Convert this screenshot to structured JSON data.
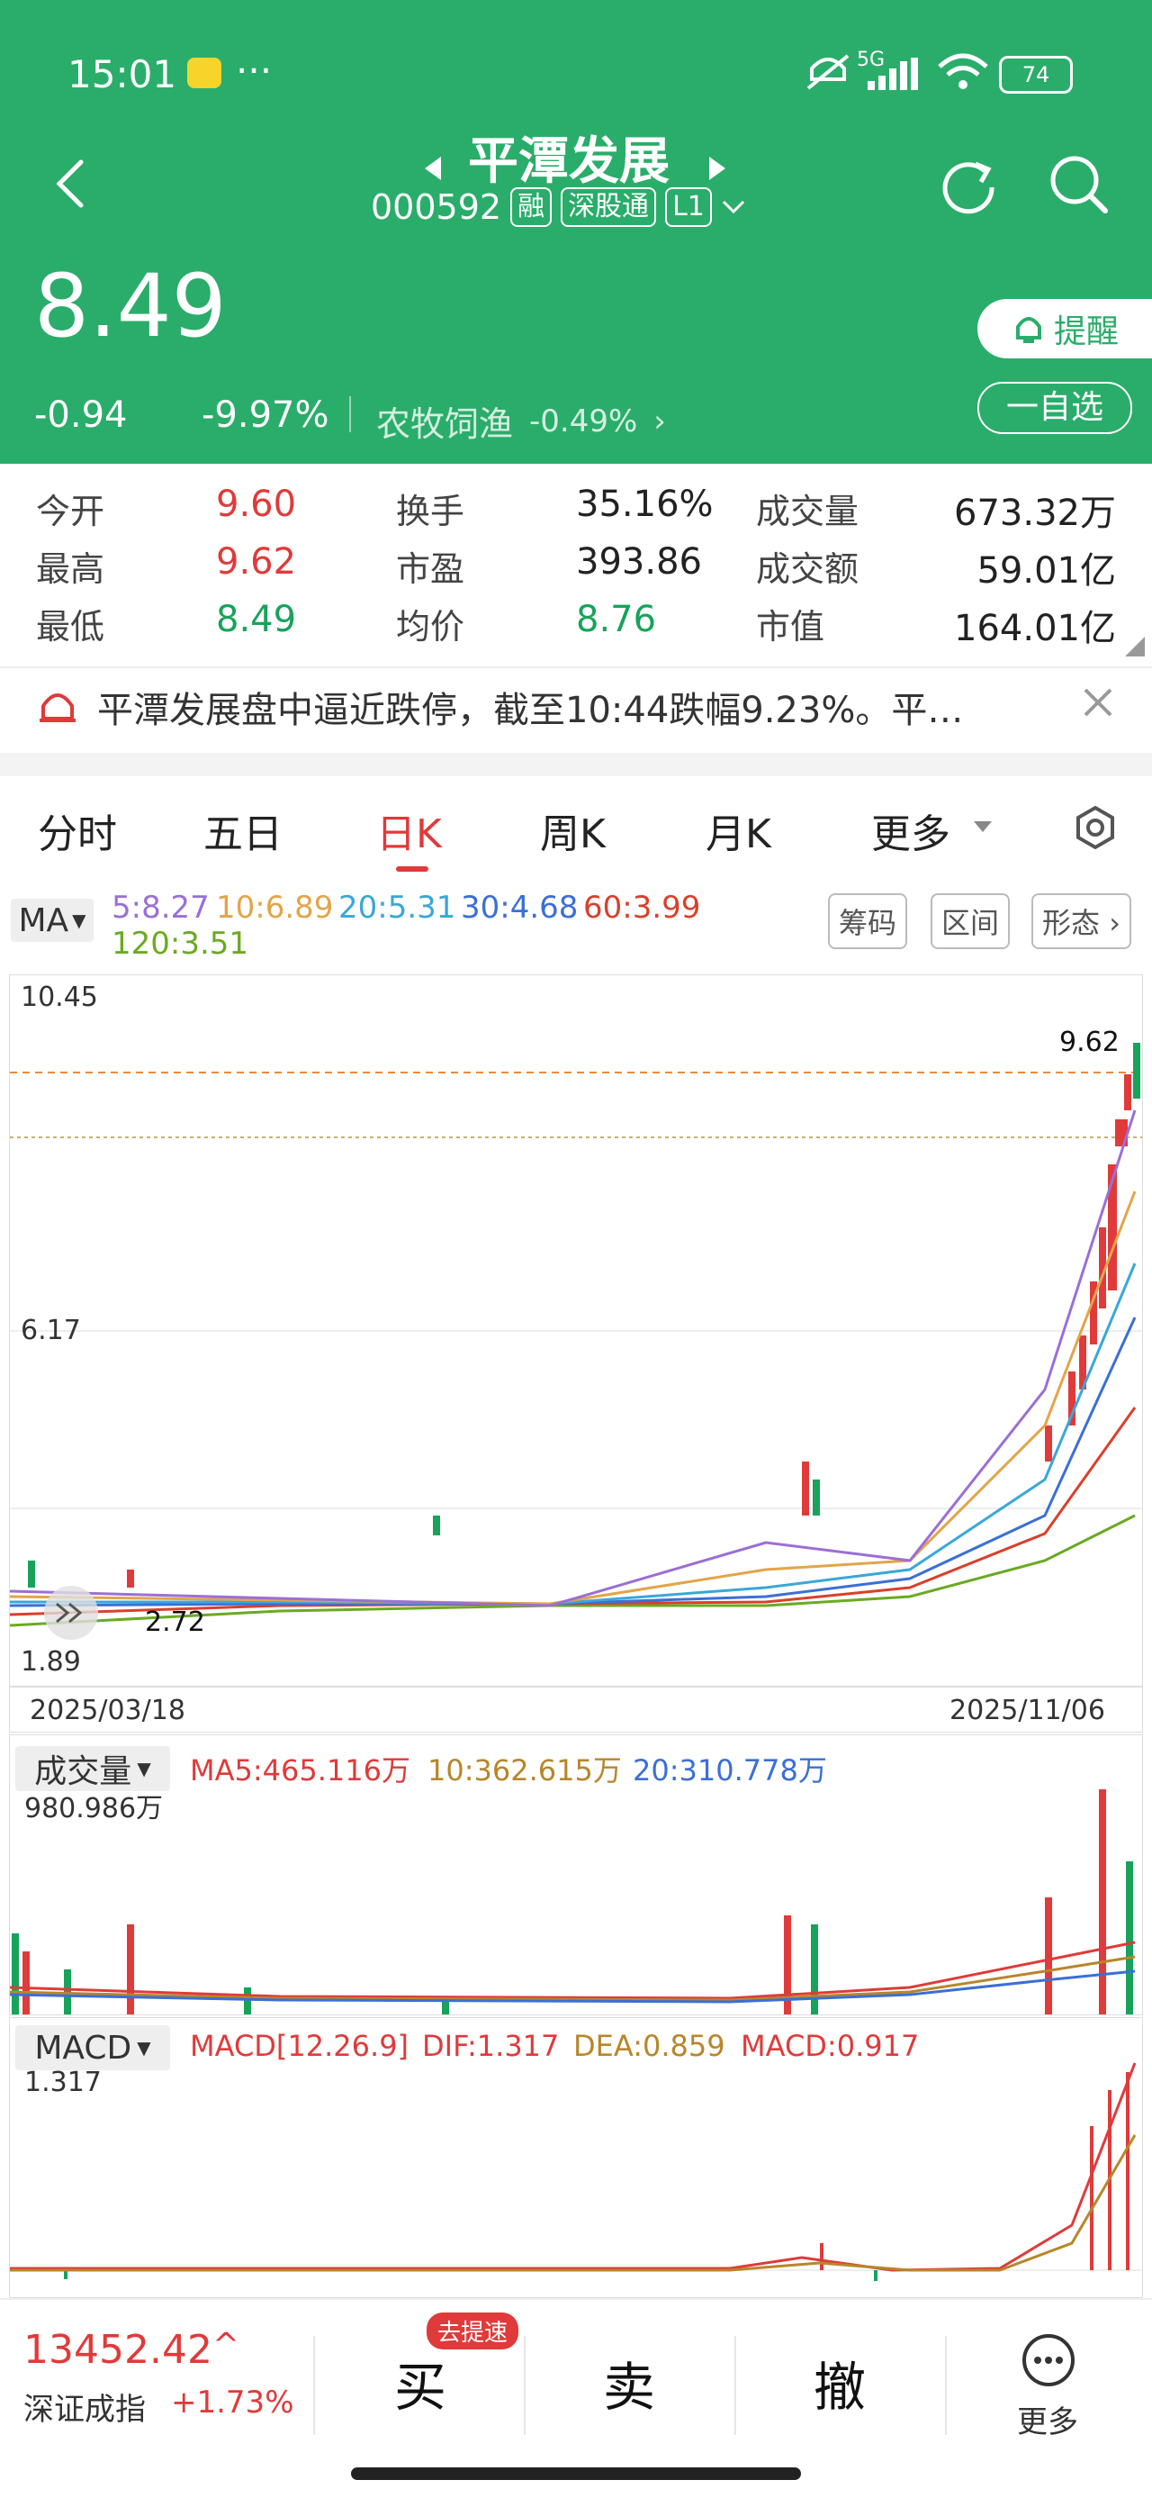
{
  "status_bar": {
    "time": "15:01",
    "dots": "···",
    "network": "5G",
    "battery": "74"
  },
  "header": {
    "title": "平潭发展",
    "code": "000592",
    "badges": [
      "融",
      "深股通",
      "L1"
    ]
  },
  "quote": {
    "price": "8.49",
    "change": "-0.94",
    "change_pct": "-9.97%",
    "sector": "农牧饲渔",
    "sector_change": "-0.49%",
    "remind_label": "提醒",
    "watchlist_label": "一自选"
  },
  "stats": {
    "labels": [
      "今开",
      "最高",
      "最低",
      "换手",
      "市盈",
      "均价",
      "成交量",
      "成交额",
      "市值"
    ],
    "values": [
      "9.60",
      "9.62",
      "8.49",
      "35.16%",
      "393.86",
      "8.76",
      "673.32万",
      "59.01亿",
      "164.01亿"
    ]
  },
  "news": {
    "text": "平潭发展盘中逼近跌停，截至10:44跌幅9.23%。平…"
  },
  "tabs": {
    "items": [
      "分时",
      "五日",
      "日K",
      "周K",
      "月K",
      "更多"
    ],
    "active": "日K"
  },
  "ma_bar": {
    "ma_label": "MA",
    "lines": [
      {
        "text": "5:8.27",
        "color": "#9b6fd6"
      },
      {
        "text": "10:6.89",
        "color": "#e3a44a"
      },
      {
        "text": "20:5.31",
        "color": "#3aa7d8"
      },
      {
        "text": "30:4.68",
        "color": "#3b6fd6"
      },
      {
        "text": "60:3.99",
        "color": "#d9402b"
      },
      {
        "text": "120:3.51",
        "color": "#6aaa22"
      }
    ],
    "tools": [
      "筹码",
      "区间",
      "形态"
    ]
  },
  "kline": {
    "y_top": "10.45",
    "y_mid": "6.17",
    "y_low": "1.89",
    "high_label": "9.62",
    "low_label": "2.72",
    "date_start": "2025/03/18",
    "date_end": "2025/11/06"
  },
  "volume": {
    "label": "成交量",
    "ma5": "MA5:465.116万",
    "ma10": "10:362.615万",
    "ma20": "20:310.778万",
    "max": "980.986万"
  },
  "macd": {
    "label": "MACD",
    "params": "MACD[12.26.9]",
    "dif": "DIF:1.317",
    "dea": "DEA:0.859",
    "macd": "MACD:0.917",
    "max": "1.317"
  },
  "bottom": {
    "index_value": "13452.42",
    "index_name": "深证成指",
    "index_change": "+1.73%",
    "buy": "买",
    "buy_badge": "去提速",
    "sell": "卖",
    "cancel": "撤",
    "more": "更多"
  },
  "colors": {
    "brand_green": "#2aad6a",
    "up_red": "#e03a3a",
    "down_green": "#17a35a"
  }
}
